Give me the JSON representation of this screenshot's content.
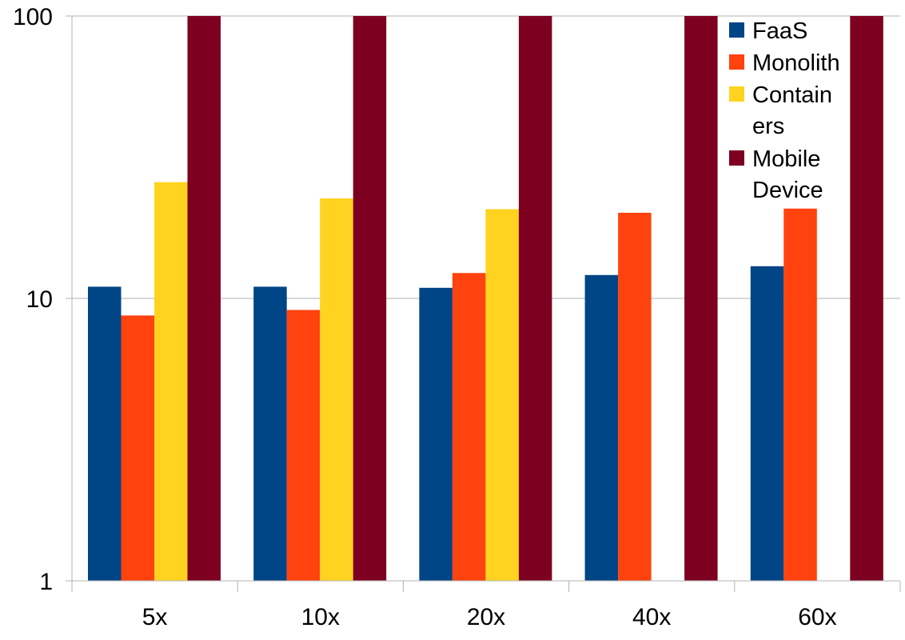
{
  "chart_data": {
    "type": "bar",
    "title": "",
    "xlabel": "",
    "ylabel": "",
    "y_scale": "log",
    "ylim": [
      1,
      100
    ],
    "y_ticks": [
      {
        "value": 1,
        "label": "1"
      },
      {
        "value": 10,
        "label": "10"
      },
      {
        "value": 100,
        "label": "100"
      }
    ],
    "grid": "horizontal at major ticks",
    "legend_position": "top-right",
    "categories": [
      "5x",
      "10x",
      "20x",
      "40x",
      "60x"
    ],
    "series": [
      {
        "name": "FaaS",
        "legend_lines": [
          "FaaS"
        ],
        "color": "#004586",
        "values": [
          11.0,
          11.0,
          10.9,
          12.1,
          13.0
        ]
      },
      {
        "name": "Monolith",
        "legend_lines": [
          "Monolith"
        ],
        "color": "#ff420e",
        "values": [
          8.7,
          9.1,
          12.3,
          20.1,
          20.8
        ]
      },
      {
        "name": "Containers",
        "legend_lines": [
          "Contain",
          "ers"
        ],
        "color": "#ffd320",
        "values": [
          25.8,
          22.6,
          20.7,
          null,
          null
        ]
      },
      {
        "name": "Mobile Device",
        "legend_lines": [
          "Mobile",
          "Device"
        ],
        "color": "#7e0021",
        "values": [
          100,
          100,
          100,
          100,
          100
        ]
      }
    ]
  }
}
